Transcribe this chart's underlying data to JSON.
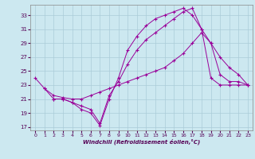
{
  "title": "",
  "xlabel": "Windchill (Refroidissement éolien,°C)",
  "bg_color": "#cce8f0",
  "grid_color": "#aaccd8",
  "line_color": "#990099",
  "xlim": [
    -0.5,
    23.5
  ],
  "ylim": [
    16.5,
    34.5
  ],
  "yticks": [
    17,
    19,
    21,
    23,
    25,
    27,
    29,
    31,
    33
  ],
  "xticks": [
    0,
    1,
    2,
    3,
    4,
    5,
    6,
    7,
    8,
    9,
    10,
    11,
    12,
    13,
    14,
    15,
    16,
    17,
    18,
    19,
    20,
    21,
    22,
    23
  ],
  "line1_x": [
    0,
    1,
    2,
    3,
    4,
    5,
    6,
    7,
    8,
    9,
    10,
    11,
    12,
    13,
    14,
    15,
    16,
    17,
    18,
    19,
    20,
    21,
    22,
    23
  ],
  "line1_y": [
    24.0,
    22.5,
    21.0,
    21.0,
    20.5,
    19.5,
    19.0,
    17.2,
    21.0,
    24.0,
    28.0,
    30.0,
    31.5,
    32.5,
    33.0,
    33.5,
    34.0,
    33.0,
    31.0,
    24.0,
    23.0,
    23.0,
    23.0,
    23.0
  ],
  "line2_x": [
    1,
    2,
    3,
    4,
    5,
    6,
    7,
    8,
    9,
    10,
    11,
    12,
    13,
    14,
    15,
    16,
    17,
    18,
    19,
    20,
    21,
    22,
    23
  ],
  "line2_y": [
    22.5,
    21.5,
    21.2,
    21.0,
    21.0,
    21.5,
    22.0,
    22.5,
    23.0,
    23.5,
    24.0,
    24.5,
    25.0,
    25.5,
    26.5,
    27.5,
    29.0,
    30.5,
    29.0,
    27.0,
    25.5,
    24.5,
    23.0
  ],
  "line3_x": [
    2,
    3,
    4,
    5,
    6,
    7,
    8,
    9,
    10,
    11,
    12,
    13,
    14,
    15,
    16,
    17,
    18,
    19,
    20,
    21,
    22,
    23
  ],
  "line3_y": [
    21.0,
    21.0,
    20.5,
    20.0,
    19.5,
    17.5,
    21.5,
    23.5,
    26.0,
    28.0,
    29.5,
    30.5,
    31.5,
    32.5,
    33.5,
    34.0,
    31.0,
    29.0,
    24.5,
    23.5,
    23.5,
    23.0
  ]
}
